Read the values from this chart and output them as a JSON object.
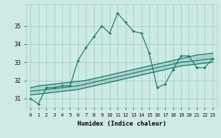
{
  "xlabel": "Humidex (Indice chaleur)",
  "ylabel": "",
  "x_values": [
    0,
    1,
    2,
    3,
    4,
    5,
    6,
    7,
    8,
    9,
    10,
    11,
    12,
    13,
    14,
    15,
    16,
    17,
    18,
    19,
    20,
    21,
    22,
    23
  ],
  "y_main": [
    31.0,
    30.7,
    31.6,
    31.6,
    31.7,
    31.7,
    33.1,
    33.8,
    34.4,
    35.0,
    34.6,
    35.7,
    35.2,
    34.7,
    34.6,
    33.5,
    31.6,
    31.8,
    32.6,
    33.35,
    33.35,
    32.7,
    32.7,
    33.2
  ],
  "y_reg_upper": [
    31.6,
    31.7,
    31.75,
    31.8,
    31.85,
    31.9,
    31.95,
    32.0,
    32.1,
    32.2,
    32.3,
    32.4,
    32.5,
    32.6,
    32.7,
    32.8,
    32.9,
    33.0,
    33.1,
    33.2,
    33.3,
    33.4,
    33.45,
    33.5
  ],
  "y_reg_mid": [
    31.4,
    31.45,
    31.5,
    31.55,
    31.6,
    31.65,
    31.7,
    31.8,
    31.9,
    32.0,
    32.1,
    32.2,
    32.3,
    32.4,
    32.5,
    32.6,
    32.7,
    32.8,
    32.9,
    33.0,
    33.05,
    33.1,
    33.15,
    33.2
  ],
  "y_reg_lower": [
    31.2,
    31.25,
    31.3,
    31.35,
    31.4,
    31.45,
    31.5,
    31.6,
    31.7,
    31.8,
    31.9,
    32.0,
    32.1,
    32.2,
    32.3,
    32.4,
    32.5,
    32.6,
    32.7,
    32.8,
    32.85,
    32.9,
    32.95,
    33.0
  ],
  "line_color": "#1a7a6e",
  "bg_color": "#ceeae4",
  "grid_color": "#9ecec6",
  "ylim": [
    30.5,
    36.2
  ],
  "xlim": [
    -0.5,
    23.5
  ],
  "yticks": [
    31,
    32,
    33,
    34,
    35
  ],
  "xticks": [
    0,
    1,
    2,
    3,
    4,
    5,
    6,
    7,
    8,
    9,
    10,
    11,
    12,
    13,
    14,
    15,
    16,
    17,
    18,
    19,
    20,
    21,
    22,
    23
  ],
  "xtick_labels": [
    "0",
    "1",
    "2",
    "3",
    "4",
    "5",
    "6",
    "7",
    "8",
    "9",
    "10",
    "11",
    "12",
    "13",
    "14",
    "15",
    "16",
    "17",
    "18",
    "19",
    "20",
    "21",
    "22",
    "23"
  ],
  "figwidth": 3.2,
  "figheight": 2.0,
  "dpi": 100
}
